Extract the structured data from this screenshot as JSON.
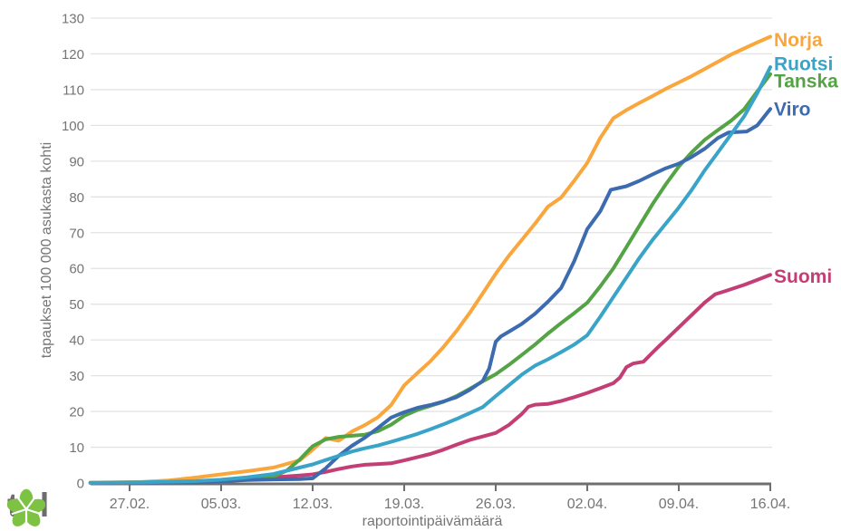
{
  "branding": {
    "logo_text": "thl",
    "logo_color": "#7DC242",
    "logo_text_color": "#6D6D6D"
  },
  "chart_data": {
    "type": "line",
    "title": "",
    "xlabel": "raportointipäivämäärä",
    "ylabel": "tapaukset 100 000 asukasta kohti",
    "ylim": [
      0,
      130
    ],
    "grid": true,
    "grid_color": "#E3E3E3",
    "axis_color": "#6F6F6F",
    "text_color": "#757575",
    "legend_position": "end-of-line",
    "y_ticks": [
      0,
      10,
      20,
      30,
      40,
      50,
      60,
      70,
      80,
      90,
      100,
      110,
      120,
      130
    ],
    "x_ticks": [
      {
        "day": 3,
        "label": "27.02."
      },
      {
        "day": 10,
        "label": "05.03."
      },
      {
        "day": 17,
        "label": "12.03."
      },
      {
        "day": 24,
        "label": "19.03."
      },
      {
        "day": 31,
        "label": "26.03."
      },
      {
        "day": 38,
        "label": "02.04."
      },
      {
        "day": 45,
        "label": "09.04."
      },
      {
        "day": 52,
        "label": "16.04."
      }
    ],
    "x_range_days": [
      0,
      52
    ],
    "x_unit": "days from 24.02. to 16.04. (reporting date)",
    "y_unit": "cases per 100 000 inhabitants",
    "series": [
      {
        "name": "Suomi",
        "color": "#C23E74",
        "label_dy": 1,
        "points": [
          [
            0,
            0.05
          ],
          [
            6,
            0.2
          ],
          [
            8,
            0.3
          ],
          [
            10,
            0.6
          ],
          [
            12,
            1
          ],
          [
            14,
            1.6
          ],
          [
            16,
            2.1
          ],
          [
            17,
            2.4
          ],
          [
            18,
            3.1
          ],
          [
            19,
            3.9
          ],
          [
            20,
            4.6
          ],
          [
            21,
            5.1
          ],
          [
            22,
            5.3
          ],
          [
            23,
            5.5
          ],
          [
            24,
            6.3
          ],
          [
            25,
            7.2
          ],
          [
            26,
            8.1
          ],
          [
            27,
            9.3
          ],
          [
            28,
            10.7
          ],
          [
            29,
            12
          ],
          [
            30,
            13
          ],
          [
            31,
            14
          ],
          [
            32,
            16.2
          ],
          [
            33,
            19.3
          ],
          [
            33.5,
            21.3
          ],
          [
            34,
            21.9
          ],
          [
            35,
            22.1
          ],
          [
            36,
            22.9
          ],
          [
            37,
            24
          ],
          [
            38,
            25.2
          ],
          [
            39,
            26.5
          ],
          [
            40,
            27.9
          ],
          [
            40.5,
            29.5
          ],
          [
            41,
            32.4
          ],
          [
            41.5,
            33.4
          ],
          [
            42.3,
            33.9
          ],
          [
            43,
            36.5
          ],
          [
            43.5,
            38.3
          ],
          [
            44,
            40
          ],
          [
            45,
            43.5
          ],
          [
            46,
            47
          ],
          [
            47,
            50.5
          ],
          [
            47.8,
            52.8
          ],
          [
            48.5,
            53.6
          ],
          [
            49,
            54.2
          ],
          [
            50,
            55.4
          ],
          [
            51,
            56.8
          ],
          [
            52,
            58.2
          ]
        ]
      },
      {
        "name": "Norja",
        "color": "#F9A63C",
        "label_dy": 3,
        "points": [
          [
            0,
            0.1
          ],
          [
            2,
            0.2
          ],
          [
            4,
            0.3
          ],
          [
            6,
            0.7
          ],
          [
            8,
            1.5
          ],
          [
            10,
            2.4
          ],
          [
            12,
            3.3
          ],
          [
            14,
            4.3
          ],
          [
            16,
            6.3
          ],
          [
            17,
            9.3
          ],
          [
            18,
            12.6
          ],
          [
            19,
            11.8
          ],
          [
            20,
            14.4
          ],
          [
            21,
            16.2
          ],
          [
            22,
            18.4
          ],
          [
            23,
            21.8
          ],
          [
            24,
            27.3
          ],
          [
            25,
            30.7
          ],
          [
            26,
            34
          ],
          [
            27,
            38
          ],
          [
            28,
            42.5
          ],
          [
            29,
            47.5
          ],
          [
            30,
            53
          ],
          [
            31,
            58.5
          ],
          [
            32,
            63.5
          ],
          [
            33,
            68
          ],
          [
            34,
            72.5
          ],
          [
            35,
            77.3
          ],
          [
            36,
            79.8
          ],
          [
            37,
            84.5
          ],
          [
            38,
            89.5
          ],
          [
            39,
            96.5
          ],
          [
            40,
            102
          ],
          [
            41,
            104.3
          ],
          [
            42,
            106.3
          ],
          [
            43,
            108.2
          ],
          [
            44,
            110.2
          ],
          [
            45,
            112
          ],
          [
            46,
            113.8
          ],
          [
            47,
            115.8
          ],
          [
            48,
            117.8
          ],
          [
            49,
            119.8
          ],
          [
            50,
            121.5
          ],
          [
            51,
            123.2
          ],
          [
            52,
            124.8
          ]
        ]
      },
      {
        "name": "Tanska",
        "color": "#54A345",
        "label_dy": 7,
        "points": [
          [
            3,
            0.1
          ],
          [
            6,
            0.2
          ],
          [
            8,
            0.3
          ],
          [
            10,
            0.6
          ],
          [
            12,
            1
          ],
          [
            14,
            1.8
          ],
          [
            15,
            3.4
          ],
          [
            16,
            6.5
          ],
          [
            17,
            10.3
          ],
          [
            18,
            12.2
          ],
          [
            19,
            12.9
          ],
          [
            20,
            13.2
          ],
          [
            21,
            13.5
          ],
          [
            22,
            14.5
          ],
          [
            23,
            16.3
          ],
          [
            24,
            18.8
          ],
          [
            25,
            20.4
          ],
          [
            26,
            21.6
          ],
          [
            27,
            22.7
          ],
          [
            28,
            24.3
          ],
          [
            29,
            26.3
          ],
          [
            30,
            28.4
          ],
          [
            31,
            30.4
          ],
          [
            32,
            33
          ],
          [
            33,
            35.8
          ],
          [
            34,
            38.7
          ],
          [
            35,
            41.8
          ],
          [
            36,
            44.7
          ],
          [
            37,
            47.5
          ],
          [
            38,
            50.4
          ],
          [
            39,
            55
          ],
          [
            40,
            60
          ],
          [
            41,
            66
          ],
          [
            42,
            72
          ],
          [
            43,
            78
          ],
          [
            44,
            83.5
          ],
          [
            45,
            88.5
          ],
          [
            46,
            92.5
          ],
          [
            47,
            96
          ],
          [
            48,
            98.7
          ],
          [
            49,
            101.3
          ],
          [
            50,
            104.5
          ],
          [
            51,
            109.5
          ],
          [
            52,
            114.3
          ]
        ]
      },
      {
        "name": "Viro",
        "color": "#3C6BB0",
        "label_dy": 0,
        "points": [
          [
            3,
            0.05
          ],
          [
            8,
            0.2
          ],
          [
            10,
            0.5
          ],
          [
            12,
            0.8
          ],
          [
            14,
            1
          ],
          [
            16,
            1.1
          ],
          [
            17,
            1.3
          ],
          [
            18,
            4.1
          ],
          [
            19,
            7.6
          ],
          [
            20,
            10.4
          ],
          [
            21,
            12.7
          ],
          [
            22,
            15.4
          ],
          [
            23,
            18.3
          ],
          [
            24,
            19.8
          ],
          [
            25,
            21
          ],
          [
            26,
            21.8
          ],
          [
            27,
            22.8
          ],
          [
            28,
            24
          ],
          [
            29,
            26
          ],
          [
            30,
            28.5
          ],
          [
            30.5,
            32
          ],
          [
            31,
            39.5
          ],
          [
            31.4,
            41
          ],
          [
            32,
            42.3
          ],
          [
            33,
            44.5
          ],
          [
            34,
            47.3
          ],
          [
            35,
            50.7
          ],
          [
            36,
            54.5
          ],
          [
            37,
            62
          ],
          [
            38,
            71
          ],
          [
            39,
            76
          ],
          [
            39.8,
            82
          ],
          [
            41,
            83
          ],
          [
            42,
            84.5
          ],
          [
            43,
            86.3
          ],
          [
            44,
            88
          ],
          [
            45,
            89.3
          ],
          [
            46,
            91.2
          ],
          [
            47,
            93.5
          ],
          [
            48,
            96.5
          ],
          [
            48.8,
            98
          ],
          [
            50.2,
            98.3
          ],
          [
            51,
            100
          ],
          [
            52,
            104.6
          ]
        ]
      },
      {
        "name": "Ruotsi",
        "color": "#39A3C8",
        "label_dy": -4,
        "points": [
          [
            0,
            0.05
          ],
          [
            4,
            0.2
          ],
          [
            8,
            0.5
          ],
          [
            10,
            0.9
          ],
          [
            12,
            1.6
          ],
          [
            14,
            2.5
          ],
          [
            16,
            4.3
          ],
          [
            17,
            5.2
          ],
          [
            18,
            6.4
          ],
          [
            19,
            7.6
          ],
          [
            20,
            8.8
          ],
          [
            21,
            9.7
          ],
          [
            22,
            10.5
          ],
          [
            23,
            11.5
          ],
          [
            24,
            12.6
          ],
          [
            25,
            13.7
          ],
          [
            26,
            15
          ],
          [
            27,
            16.4
          ],
          [
            28,
            17.9
          ],
          [
            29,
            19.5
          ],
          [
            30,
            21.2
          ],
          [
            31,
            24.3
          ],
          [
            32,
            27.3
          ],
          [
            33,
            30.3
          ],
          [
            34,
            32.8
          ],
          [
            35,
            34.6
          ],
          [
            36,
            36.6
          ],
          [
            37,
            38.7
          ],
          [
            38,
            41.3
          ],
          [
            39,
            46.5
          ],
          [
            40,
            52
          ],
          [
            41,
            57.5
          ],
          [
            42,
            63
          ],
          [
            43,
            68
          ],
          [
            44,
            72.5
          ],
          [
            45,
            77
          ],
          [
            46,
            82
          ],
          [
            47,
            87.5
          ],
          [
            48,
            92.5
          ],
          [
            49,
            97.5
          ],
          [
            50,
            102.5
          ],
          [
            51,
            109
          ],
          [
            52,
            116.3
          ]
        ]
      }
    ]
  }
}
